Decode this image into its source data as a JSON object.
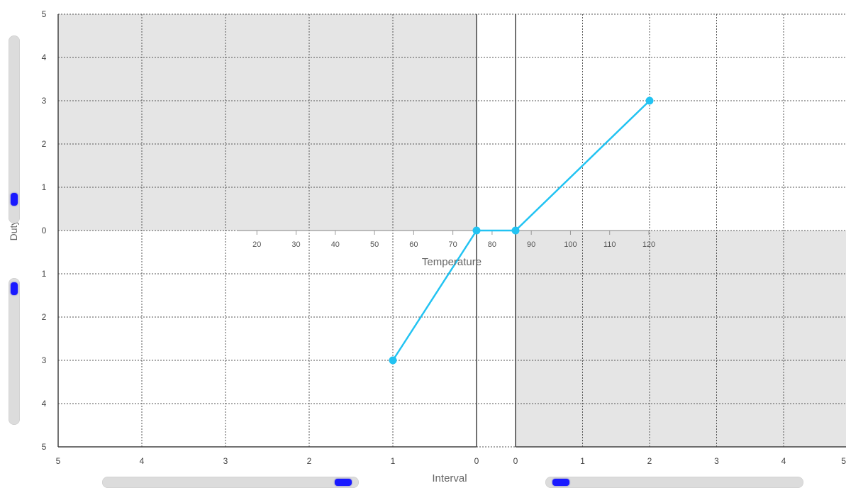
{
  "chart_data": {
    "type": "line",
    "y_axis_title": "Duty",
    "x_axis_title": "Interval",
    "temperature_axis_title": "Temperature",
    "y_ticks_upper": [
      "5",
      "4",
      "3",
      "2",
      "1",
      "0"
    ],
    "y_ticks_lower": [
      "1",
      "2",
      "3",
      "4",
      "5"
    ],
    "x_ticks_left": [
      "5",
      "4",
      "3",
      "2",
      "1",
      "0"
    ],
    "x_ticks_right": [
      "0",
      "1",
      "2",
      "3",
      "4",
      "5"
    ],
    "temperature_ticks": [
      20,
      30,
      40,
      50,
      60,
      70,
      80,
      90,
      100,
      110,
      120
    ],
    "xlim_left": [
      0,
      5
    ],
    "xlim_right": [
      0,
      5
    ],
    "ylim": [
      0,
      5
    ],
    "temperature_range": [
      10,
      120
    ],
    "grid": true,
    "series": [
      {
        "points": [
          {
            "segment": "lower-left",
            "interval": 1,
            "duty": 3
          },
          {
            "segment": "center",
            "interval": 0,
            "duty": 0
          },
          {
            "segment": "center",
            "interval": 0,
            "duty": 0
          },
          {
            "segment": "upper-right",
            "interval": 2,
            "duty": 3
          }
        ]
      }
    ],
    "colors": {
      "series": "#22c3f2",
      "shaded": "#e5e5e5",
      "grid": "#555555",
      "slider_track": "#dcdcdc",
      "slider_thumb": "#1a1aff"
    }
  },
  "sliders": {
    "duty_upper": {
      "value": 0.9
    },
    "duty_lower": {
      "value": 0.03
    },
    "interval_left": {
      "value": 0.97
    },
    "interval_right": {
      "value": 0.03
    }
  }
}
